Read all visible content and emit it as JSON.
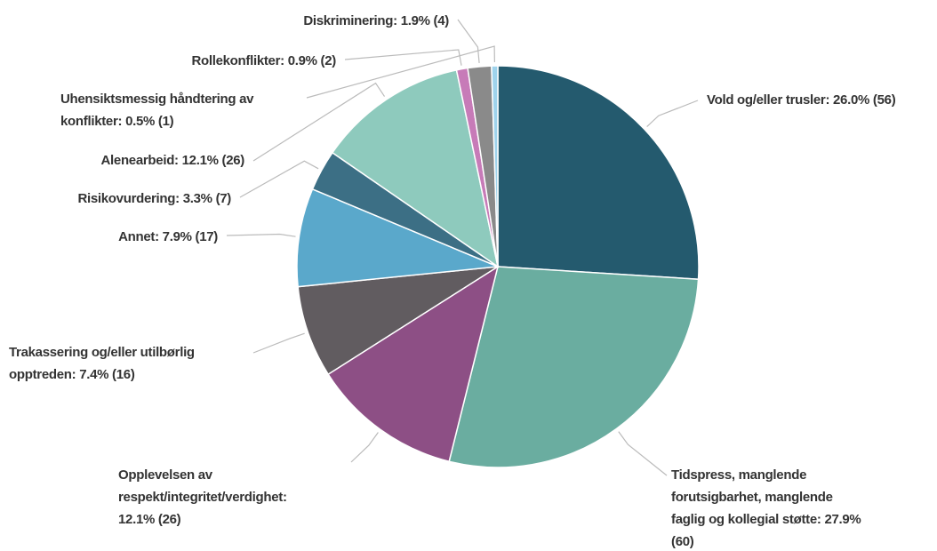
{
  "chart_data": {
    "type": "pie",
    "labels": [
      [
        "Vold og/eller trusler: 26.0% (56)"
      ],
      [
        "Tidspress, manglende",
        "forutsigbarhet, manglende",
        "faglig og kollegial støtte: 27.9%",
        "(60)"
      ],
      [
        "Opplevelsen av",
        "respekt/integritet/verdighet:",
        "12.1% (26)"
      ],
      [
        "Trakassering og/eller utilbørlig",
        "opptreden: 7.4% (16)"
      ],
      [
        "Annet: 7.9% (17)"
      ],
      [
        "Risikovurdering: 3.3% (7)"
      ],
      [
        "Alenearbeid: 12.1% (26)"
      ],
      [
        "Rollekonflikter: 0.9% (2)"
      ],
      [
        "Diskriminering: 1.9% (4)"
      ],
      [
        "Uhensiktsmessig håndtering av",
        "konflikter: 0.5% (1)"
      ]
    ],
    "values": [
      26.0,
      27.9,
      12.1,
      7.4,
      7.9,
      3.3,
      12.1,
      0.9,
      1.9,
      0.5
    ],
    "counts": [
      56,
      60,
      26,
      16,
      17,
      7,
      26,
      2,
      4,
      1
    ],
    "colors": [
      "#245a6e",
      "#6aada0",
      "#8d4f85",
      "#615c60",
      "#5aa8cb",
      "#3c6f85",
      "#8ecabd",
      "#c77bb8",
      "#8a8a8a",
      "#9fd3ec"
    ]
  }
}
